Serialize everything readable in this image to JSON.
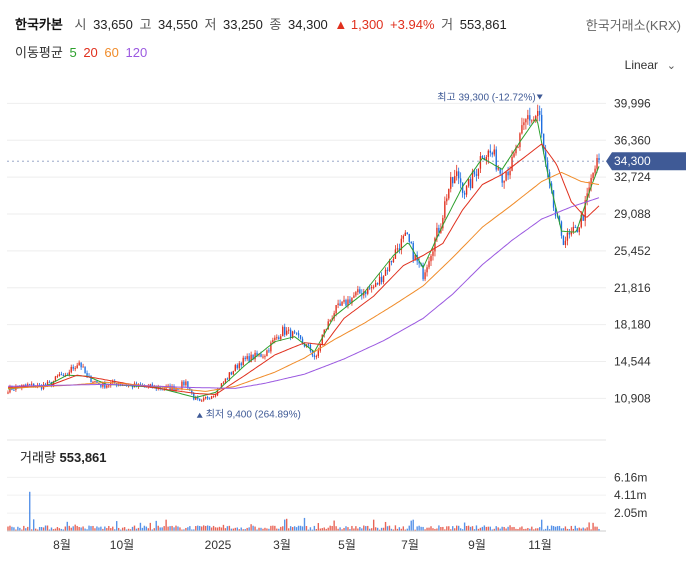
{
  "header": {
    "name": "한국카본",
    "open_label": "시",
    "open": "33,650",
    "high_label": "고",
    "high": "34,550",
    "low_label": "저",
    "low": "33,250",
    "close_label": "종",
    "close": "34,300",
    "change": "▲ 1,300",
    "change_pct": "+3.94%",
    "volume_label": "거",
    "volume": "553,861",
    "exchange": "한국거래소(KRX)"
  },
  "ma_legend": {
    "label": "이동평균",
    "items": [
      "5",
      "20",
      "60",
      "120"
    ],
    "colors": [
      "#2ca02c",
      "#e0301e",
      "#f08c2a",
      "#9b59e0"
    ]
  },
  "scale_label": "Linear",
  "colors": {
    "up": "#e0301e",
    "down": "#1e6ee0",
    "price_badge": "#3f5a96"
  },
  "chart_data": {
    "type": "candlestick",
    "x_tick_labels": [
      "8월",
      "10월",
      "2025",
      "3월",
      "5월",
      "7월",
      "9월",
      "11월"
    ],
    "y_tick_labels": [
      "39,996",
      "36,360",
      "32,724",
      "29,088",
      "25,452",
      "21,816",
      "18,180",
      "14,544",
      "10,908"
    ],
    "ylim": [
      7500,
      42800
    ],
    "current_price": "34,300",
    "annotations": {
      "high": "최고 39,300 (-12.72%)",
      "low": "최저 9,400 (264.89%)"
    },
    "anchors": [
      [
        0,
        11800
      ],
      [
        20,
        12200
      ],
      [
        33,
        12100
      ],
      [
        44,
        12400
      ],
      [
        53,
        13300
      ],
      [
        57,
        12800
      ],
      [
        62,
        13600
      ],
      [
        72,
        14500
      ],
      [
        80,
        13000
      ],
      [
        95,
        12200
      ],
      [
        110,
        12400
      ],
      [
        130,
        12100
      ],
      [
        150,
        12000
      ],
      [
        170,
        11900
      ],
      [
        180,
        12500
      ],
      [
        188,
        11000
      ],
      [
        195,
        10400
      ],
      [
        200,
        10900
      ],
      [
        210,
        11500
      ],
      [
        222,
        13000
      ],
      [
        235,
        14500
      ],
      [
        248,
        15000
      ],
      [
        260,
        15300
      ],
      [
        268,
        16500
      ],
      [
        278,
        17600
      ],
      [
        290,
        17100
      ],
      [
        305,
        15800
      ],
      [
        312,
        14800
      ],
      [
        318,
        17100
      ],
      [
        330,
        19500
      ],
      [
        340,
        20200
      ],
      [
        350,
        21000
      ],
      [
        360,
        21500
      ],
      [
        372,
        22000
      ],
      [
        385,
        24000
      ],
      [
        395,
        26000
      ],
      [
        403,
        26800
      ],
      [
        413,
        24500
      ],
      [
        420,
        23200
      ],
      [
        428,
        25500
      ],
      [
        438,
        28200
      ],
      [
        445,
        31500
      ],
      [
        455,
        33000
      ],
      [
        463,
        31200
      ],
      [
        473,
        33200
      ],
      [
        480,
        35200
      ],
      [
        490,
        35000
      ],
      [
        500,
        33000
      ],
      [
        510,
        34000
      ],
      [
        520,
        37000
      ],
      [
        526,
        38700
      ],
      [
        532,
        38400
      ],
      [
        537,
        39300
      ],
      [
        542,
        35000
      ],
      [
        547,
        32000
      ],
      [
        555,
        28500
      ],
      [
        562,
        26600
      ],
      [
        568,
        26800
      ],
      [
        575,
        27500
      ],
      [
        582,
        29000
      ],
      [
        588,
        31500
      ],
      [
        593,
        33500
      ],
      [
        598,
        34300
      ]
    ],
    "ma_series": [
      {
        "name": "5",
        "points": [
          [
            0,
            11850
          ],
          [
            40,
            12200
          ],
          [
            60,
            13200
          ],
          [
            80,
            13100
          ],
          [
            100,
            12300
          ],
          [
            150,
            12000
          ],
          [
            190,
            11000
          ],
          [
            210,
            11500
          ],
          [
            240,
            14200
          ],
          [
            270,
            16500
          ],
          [
            290,
            17000
          ],
          [
            310,
            15500
          ],
          [
            330,
            19000
          ],
          [
            360,
            21300
          ],
          [
            390,
            25000
          ],
          [
            405,
            26300
          ],
          [
            420,
            23800
          ],
          [
            440,
            28000
          ],
          [
            460,
            31800
          ],
          [
            480,
            34600
          ],
          [
            500,
            33500
          ],
          [
            520,
            36500
          ],
          [
            535,
            38600
          ],
          [
            545,
            33600
          ],
          [
            560,
            27400
          ],
          [
            575,
            27300
          ],
          [
            590,
            31800
          ],
          [
            598,
            33800
          ]
        ]
      },
      {
        "name": "20",
        "points": [
          [
            0,
            12000
          ],
          [
            40,
            12100
          ],
          [
            70,
            13200
          ],
          [
            90,
            12900
          ],
          [
            130,
            12200
          ],
          [
            190,
            11400
          ],
          [
            210,
            11300
          ],
          [
            240,
            13200
          ],
          [
            270,
            15200
          ],
          [
            300,
            16400
          ],
          [
            320,
            16200
          ],
          [
            340,
            18800
          ],
          [
            370,
            21000
          ],
          [
            400,
            24000
          ],
          [
            420,
            25000
          ],
          [
            440,
            26200
          ],
          [
            460,
            29500
          ],
          [
            480,
            32000
          ],
          [
            500,
            33000
          ],
          [
            520,
            34500
          ],
          [
            540,
            36000
          ],
          [
            555,
            34000
          ],
          [
            570,
            30300
          ],
          [
            585,
            28700
          ],
          [
            598,
            29900
          ]
        ]
      },
      {
        "name": "60",
        "points": [
          [
            0,
            11900
          ],
          [
            60,
            12200
          ],
          [
            100,
            12500
          ],
          [
            160,
            12000
          ],
          [
            200,
            11600
          ],
          [
            230,
            12100
          ],
          [
            270,
            13500
          ],
          [
            300,
            14900
          ],
          [
            330,
            16700
          ],
          [
            360,
            18300
          ],
          [
            390,
            20100
          ],
          [
            420,
            22000
          ],
          [
            450,
            24800
          ],
          [
            480,
            27800
          ],
          [
            510,
            30000
          ],
          [
            540,
            32300
          ],
          [
            560,
            33200
          ],
          [
            580,
            32300
          ],
          [
            598,
            32000
          ]
        ]
      },
      {
        "name": "120",
        "points": [
          [
            0,
            12100
          ],
          [
            100,
            12300
          ],
          [
            180,
            12000
          ],
          [
            230,
            11900
          ],
          [
            260,
            12400
          ],
          [
            300,
            13300
          ],
          [
            340,
            14800
          ],
          [
            380,
            16600
          ],
          [
            420,
            18800
          ],
          [
            450,
            21200
          ],
          [
            480,
            24100
          ],
          [
            510,
            26500
          ],
          [
            540,
            28600
          ],
          [
            570,
            29800
          ],
          [
            598,
            30700
          ]
        ]
      }
    ],
    "volume": {
      "title_label": "거래량",
      "title_value": "553,861",
      "y_tick_labels": [
        "6.16m",
        "4.11m",
        "2.05m"
      ],
      "ylim": [
        0,
        7000000
      ]
    }
  }
}
